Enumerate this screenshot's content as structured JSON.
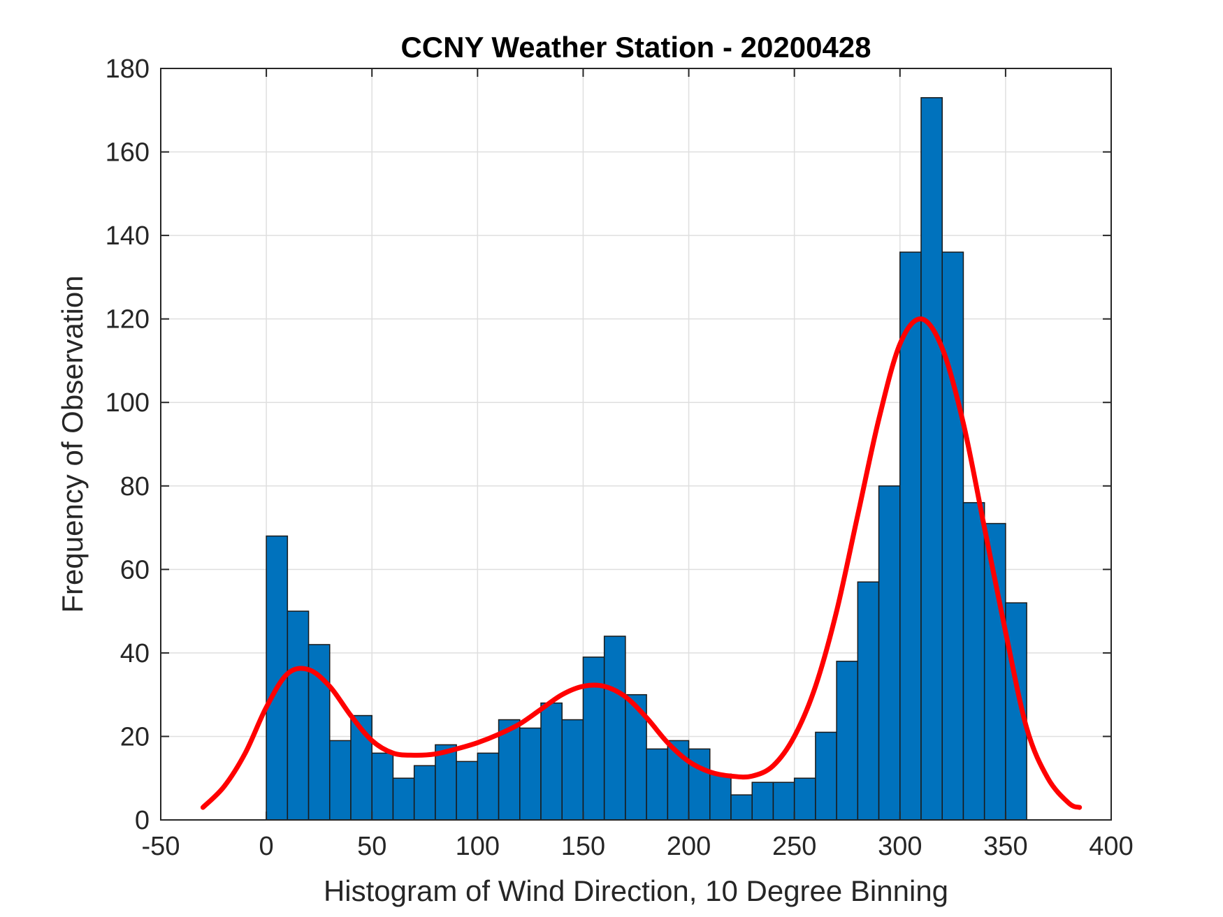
{
  "chart_data": {
    "type": "bar",
    "title": "CCNY Weather Station - 20200428",
    "xlabel": "Histogram of Wind Direction, 10 Degree Binning",
    "ylabel": "Frequency of Observation",
    "xlim": [
      -50,
      400
    ],
    "ylim": [
      0,
      180
    ],
    "xticks": [
      "-50",
      "0",
      "50",
      "100",
      "150",
      "200",
      "250",
      "300",
      "350",
      "400"
    ],
    "yticks": [
      "0",
      "20",
      "40",
      "60",
      "80",
      "100",
      "120",
      "140",
      "160",
      "180"
    ],
    "grid": true,
    "bin_width": 10,
    "bin_edges_start": [
      0,
      10,
      20,
      30,
      40,
      50,
      60,
      70,
      80,
      90,
      100,
      110,
      120,
      130,
      140,
      150,
      160,
      170,
      180,
      190,
      200,
      210,
      220,
      230,
      240,
      250,
      260,
      270,
      280,
      290,
      300,
      310,
      320,
      330,
      340,
      350
    ],
    "values": [
      68,
      50,
      42,
      19,
      25,
      16,
      10,
      13,
      18,
      14,
      16,
      24,
      22,
      28,
      24,
      39,
      44,
      30,
      17,
      19,
      17,
      11,
      6,
      9,
      9,
      10,
      21,
      38,
      57,
      80,
      136,
      173,
      136,
      76,
      71,
      52
    ],
    "bar_color": "#0072BD",
    "fit_curve": {
      "color": "#FF0000",
      "x": [
        -30,
        -20,
        -10,
        0,
        10,
        20,
        30,
        40,
        50,
        60,
        70,
        80,
        90,
        100,
        110,
        120,
        130,
        140,
        150,
        160,
        170,
        180,
        190,
        200,
        210,
        220,
        230,
        240,
        250,
        260,
        270,
        280,
        290,
        300,
        310,
        320,
        330,
        340,
        350,
        360,
        370,
        380,
        385
      ],
      "y": [
        3,
        8,
        16,
        27,
        35,
        36,
        32,
        25,
        19,
        16,
        15.5,
        15.8,
        17,
        18.5,
        20.5,
        23,
        26.5,
        30,
        32,
        32,
        29.5,
        24.5,
        18.5,
        14,
        11.5,
        10.5,
        10.5,
        13,
        20,
        32,
        50,
        73,
        96,
        114,
        120,
        113,
        95,
        70,
        45,
        22,
        10,
        4,
        3
      ]
    }
  }
}
